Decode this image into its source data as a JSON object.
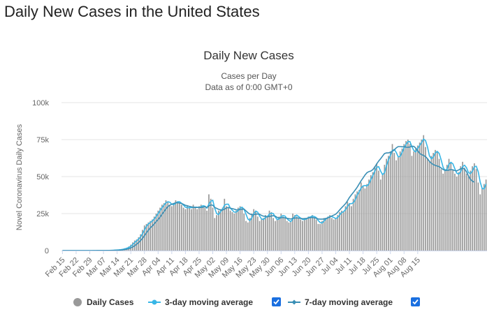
{
  "page": {
    "title": "Daily New Cases in the United States"
  },
  "colors": {
    "bars": "#999999",
    "ma3": "#38b6e6",
    "ma7": "#3a8fb5",
    "grid": "#e6e6e6",
    "axis_text": "#666666",
    "checkbox": "#1a6fe0"
  },
  "legend": {
    "items": [
      {
        "label": "Daily Cases",
        "icon": "circle-marker-icon"
      },
      {
        "label": "3-day moving average",
        "icon": "line-marker-icon"
      },
      {
        "label": "7-day moving average",
        "icon": "line-marker-icon"
      }
    ]
  },
  "chart_data": {
    "type": "bar",
    "title": "Daily New Cases",
    "subtitle": [
      "Cases per Day",
      "Data as of 0:00 GMT+0"
    ],
    "ylabel": "Novel Coronavirus Daily Cases",
    "xlabel": "",
    "ylim": [
      0,
      100000
    ],
    "yticks": [
      0,
      25000,
      50000,
      75000,
      100000
    ],
    "ytick_labels": [
      "0",
      "25k",
      "50k",
      "75k",
      "100k"
    ],
    "x_tick_labels": [
      "Feb 15",
      "Feb 22",
      "Feb 29",
      "Mar 07",
      "Mar 14",
      "Mar 21",
      "Mar 28",
      "Apr 04",
      "Apr 11",
      "Apr 18",
      "Apr 25",
      "May 02",
      "May 09",
      "May 16",
      "May 23",
      "May 30",
      "Jun 06",
      "Jun 13",
      "Jun 20",
      "Jun 27",
      "Jul 04",
      "Jul 11",
      "Jul 18",
      "Jul 25",
      "Aug 01",
      "Aug 08",
      "Aug 15"
    ],
    "legend_position": "bottom",
    "grid": true,
    "x_start": "Feb 15",
    "series": [
      {
        "name": "Daily Cases",
        "type": "bar",
        "values": [
          0,
          0,
          0,
          0,
          0,
          0,
          0,
          0,
          0,
          0,
          0,
          0,
          0,
          0,
          0,
          10,
          20,
          10,
          30,
          20,
          30,
          50,
          80,
          100,
          120,
          200,
          300,
          400,
          500,
          600,
          800,
          1200,
          1600,
          2000,
          2800,
          4000,
          5500,
          6800,
          7500,
          9000,
          11000,
          14000,
          17000,
          18000,
          19000,
          20000,
          21000,
          23000,
          25000,
          27000,
          29000,
          31000,
          32000,
          34000,
          33000,
          31000,
          30000,
          32000,
          34000,
          33000,
          32000,
          31000,
          29000,
          28000,
          30000,
          29000,
          28000,
          31000,
          29000,
          28000,
          30000,
          31000,
          30000,
          29000,
          27000,
          38000,
          35000,
          29000,
          22000,
          24000,
          27000,
          28000,
          29000,
          35000,
          30000,
          29000,
          27000,
          26000,
          25000,
          27000,
          29000,
          30000,
          29000,
          25000,
          20000,
          19000,
          22000,
          25000,
          28000,
          27000,
          23000,
          20000,
          21000,
          22000,
          24000,
          23000,
          27000,
          26000,
          22000,
          20000,
          21000,
          23000,
          25000,
          23000,
          22000,
          20000,
          19000,
          20000,
          25000,
          24000,
          23000,
          22000,
          21000,
          20000,
          22000,
          22000,
          23000,
          23000,
          24000,
          22000,
          21000,
          18000,
          18000,
          20000,
          22000,
          22000,
          23000,
          24000,
          22000,
          21000,
          22000,
          24000,
          26000,
          27000,
          26000,
          30000,
          33000,
          32000,
          30000,
          35000,
          38000,
          40000,
          41000,
          46000,
          44000,
          42000,
          45000,
          48000,
          51000,
          53000,
          57000,
          59000,
          54000,
          48000,
          52000,
          58000,
          62000,
          64000,
          67000,
          72000,
          66000,
          61000,
          63000,
          67000,
          69000,
          72000,
          74000,
          75000,
          72000,
          64000,
          67000,
          69000,
          71000,
          73000,
          75000,
          78000,
          70000,
          62000,
          60000,
          64000,
          66000,
          68000,
          67000,
          62000,
          55000,
          52000,
          55000,
          58000,
          62000,
          59000,
          55000,
          52000,
          50000,
          53000,
          57000,
          60000,
          56000,
          52000,
          50000,
          54000,
          57000,
          59000,
          55000,
          46000,
          38000,
          42000,
          45000,
          48000
        ],
        "color": "#999999"
      },
      {
        "name": "3-day moving average",
        "type": "line",
        "values": [
          0,
          0,
          0,
          0,
          0,
          0,
          0,
          0,
          0,
          0,
          0,
          0,
          0,
          0,
          0,
          3,
          10,
          13,
          20,
          20,
          27,
          33,
          53,
          77,
          100,
          140,
          207,
          300,
          400,
          500,
          633,
          867,
          1200,
          1600,
          2133,
          2933,
          4100,
          5433,
          6600,
          7767,
          9167,
          11333,
          14000,
          16333,
          18000,
          19000,
          20000,
          21333,
          23000,
          25000,
          27000,
          29000,
          30667,
          32333,
          33000,
          32667,
          31333,
          31000,
          32000,
          33000,
          33000,
          32000,
          30667,
          29333,
          29000,
          29000,
          29000,
          29333,
          29333,
          29333,
          29000,
          29667,
          30333,
          30000,
          28667,
          31333,
          33333,
          34000,
          28667,
          25000,
          24333,
          26333,
          28000,
          30667,
          31333,
          31333,
          28667,
          27333,
          26000,
          26000,
          27000,
          28667,
          29333,
          28000,
          24667,
          21333,
          20333,
          22000,
          25000,
          26667,
          26000,
          23333,
          21333,
          21000,
          22333,
          23000,
          24667,
          25333,
          25000,
          22667,
          21000,
          21333,
          23000,
          23667,
          23333,
          21667,
          20333,
          19667,
          21333,
          23000,
          24000,
          23000,
          22000,
          21000,
          21000,
          21333,
          22333,
          22667,
          23333,
          23000,
          22333,
          20333,
          19000,
          18667,
          20000,
          21333,
          22333,
          23000,
          23000,
          22333,
          21667,
          22333,
          24000,
          25667,
          26333,
          27667,
          29667,
          31667,
          31667,
          32333,
          34333,
          37667,
          39667,
          42333,
          43667,
          44000,
          43667,
          45000,
          48000,
          50667,
          53667,
          56333,
          56667,
          53667,
          51333,
          52667,
          57333,
          61333,
          64333,
          67667,
          68333,
          66333,
          63333,
          63667,
          66333,
          69333,
          71667,
          73667,
          73667,
          70333,
          67667,
          66667,
          69000,
          71000,
          73000,
          75333,
          74333,
          70000,
          64000,
          62000,
          63333,
          66000,
          67000,
          65667,
          61333,
          56333,
          54000,
          55000,
          58333,
          59667,
          58667,
          55333,
          52333,
          51667,
          53333,
          56667,
          57667,
          56000,
          52667,
          52000,
          53667,
          56667,
          57000,
          53333,
          46333,
          42000,
          41667,
          45000
        ],
        "color": "#38b6e6"
      },
      {
        "name": "7-day moving average",
        "type": "line",
        "values": [
          0,
          0,
          0,
          0,
          0,
          0,
          0,
          0,
          0,
          0,
          0,
          0,
          0,
          0,
          0,
          1,
          4,
          6,
          10,
          13,
          17,
          24,
          34,
          46,
          61,
          81,
          114,
          156,
          213,
          279,
          376,
          527,
          719,
          971,
          1300,
          1793,
          2443,
          3271,
          4286,
          5414,
          6771,
          8229,
          10086,
          12000,
          13743,
          15429,
          16571,
          18000,
          19571,
          21000,
          22571,
          24571,
          26286,
          28143,
          29714,
          30714,
          31286,
          31857,
          32286,
          32286,
          32143,
          31857,
          31286,
          30571,
          30286,
          29857,
          29571,
          29286,
          29143,
          29143,
          29143,
          29143,
          29286,
          29714,
          29143,
          30143,
          30929,
          30614,
          29171,
          28529,
          27886,
          27486,
          27400,
          28000,
          28829,
          29157,
          28643,
          28343,
          28000,
          27571,
          27486,
          27786,
          27857,
          28000,
          26857,
          25600,
          24700,
          24286,
          24329,
          24557,
          24743,
          24500,
          23729,
          23243,
          23129,
          22843,
          23100,
          23371,
          23543,
          23243,
          22457,
          21986,
          22171,
          22343,
          22143,
          21771,
          21543,
          21343,
          21771,
          21971,
          22057,
          22014,
          21714,
          21557,
          21614,
          21757,
          22029,
          22357,
          22314,
          22171,
          21843,
          21371,
          21271,
          21271,
          21371,
          21729,
          22100,
          22714,
          23400,
          23957,
          24629,
          25914,
          27443,
          28900,
          30271,
          31714,
          33629,
          35857,
          37600,
          39243,
          40986,
          42843,
          45029,
          47186,
          49100,
          51086,
          52629,
          53371,
          53743,
          54714,
          56486,
          58600,
          60514,
          62086,
          63886,
          65571,
          65986,
          65986,
          66457,
          67114,
          68000,
          69429,
          70286,
          70286,
          70143,
          70143,
          69871,
          69771,
          70000,
          70486,
          70429,
          69286,
          67514,
          65686,
          64857,
          64286,
          63486,
          62143,
          60286,
          59000,
          58143,
          57571,
          57114,
          56714,
          55800,
          54786,
          54257,
          54214,
          54371,
          54771,
          54543,
          54057,
          53886,
          54514,
          55286,
          55714,
          55114,
          53286,
          50471,
          48114,
          46943,
          46229
        ],
        "color": "#3a8fb5"
      }
    ]
  }
}
